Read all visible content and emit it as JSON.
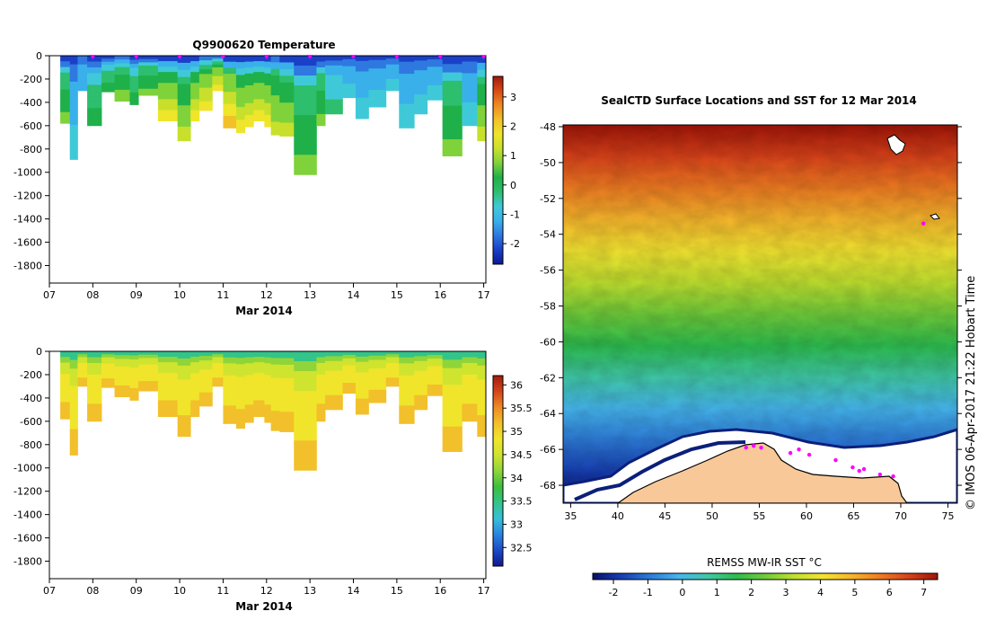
{
  "colors": {
    "background": "#ffffff",
    "land": "#f8c898",
    "profile_marker": "#ff00ff",
    "sea_ice": "#ffffff",
    "temp_ramp": [
      "#0d1790",
      "#1a40c8",
      "#2f78e0",
      "#3ab0ea",
      "#3fc9d8",
      "#2dbe6e",
      "#1fb04a",
      "#7fd23a",
      "#c8e02c",
      "#efe52a",
      "#f2c12a",
      "#ef8a22",
      "#d84a16",
      "#a11a0c"
    ],
    "sal_ramp": [
      "#13188e",
      "#1b4bc6",
      "#2b84e0",
      "#36bfd8",
      "#33c48a",
      "#3cbf3c",
      "#8fd53a",
      "#cfe42f",
      "#f0e52b",
      "#f2c02b",
      "#ee8a22",
      "#d3461a",
      "#a31a0f"
    ],
    "sst_ramp": [
      "#08116c",
      "#173fb4",
      "#2d7bd9",
      "#46b6ee",
      "#40c8a8",
      "#2dbd4e",
      "#6fcc3a",
      "#bfe02f",
      "#f3e531",
      "#f6b62c",
      "#ef7c22",
      "#d8421a",
      "#9f1407"
    ]
  },
  "chart_data": [
    {
      "id": "temperature-section",
      "type": "heatmap",
      "title": "Q9900620  Temperature",
      "xlabel": "Mar 2014",
      "ylabel": "",
      "x_ticks": [
        "07",
        "08",
        "09",
        "10",
        "11",
        "12",
        "13",
        "14",
        "15",
        "16",
        "17"
      ],
      "xlim": [
        7,
        17.05
      ],
      "y_ticks": [
        0,
        -200,
        -400,
        -600,
        -800,
        -1000,
        -1200,
        -1400,
        -1600,
        -1800
      ],
      "y_tick_labels": [
        "0",
        "-200",
        "-400",
        "-600",
        "-800",
        "-1000",
        "-1200",
        "-1400",
        "-1600",
        "-1800"
      ],
      "ylim": [
        -1950,
        0
      ],
      "colorbar_ticks": [
        3,
        2,
        1,
        0,
        -1,
        -2
      ],
      "colorbar_tick_labels": [
        "3",
        "2",
        "1",
        "0",
        "-1",
        "-2"
      ],
      "colorbar_range": [
        -2.7,
        3.7
      ],
      "marker_days": [
        8.0,
        9.0,
        10.0,
        11.0,
        12.0,
        13.0,
        14.0,
        15.0,
        16.0,
        17.0
      ],
      "profiles": [
        {
          "x0": 7.25,
          "x1": 7.47,
          "depth": 580
        },
        {
          "x0": 7.47,
          "x1": 7.65,
          "depth": 890
        },
        {
          "x0": 7.65,
          "x1": 7.87,
          "depth": 300
        },
        {
          "x0": 7.87,
          "x1": 8.2,
          "depth": 600
        },
        {
          "x0": 8.2,
          "x1": 8.5,
          "depth": 310
        },
        {
          "x0": 8.5,
          "x1": 8.85,
          "depth": 390
        },
        {
          "x0": 8.85,
          "x1": 9.05,
          "depth": 420
        },
        {
          "x0": 9.05,
          "x1": 9.5,
          "depth": 340
        },
        {
          "x0": 9.5,
          "x1": 9.95,
          "depth": 560
        },
        {
          "x0": 9.95,
          "x1": 10.25,
          "depth": 730
        },
        {
          "x0": 10.25,
          "x1": 10.45,
          "depth": 560
        },
        {
          "x0": 10.45,
          "x1": 10.75,
          "depth": 470
        },
        {
          "x0": 10.75,
          "x1": 11.0,
          "depth": 300
        },
        {
          "x0": 11.0,
          "x1": 11.3,
          "depth": 620
        },
        {
          "x0": 11.3,
          "x1": 11.5,
          "depth": 660
        },
        {
          "x0": 11.5,
          "x1": 11.7,
          "depth": 610
        },
        {
          "x0": 11.7,
          "x1": 11.95,
          "depth": 560
        },
        {
          "x0": 11.95,
          "x1": 12.1,
          "depth": 610
        },
        {
          "x0": 12.1,
          "x1": 12.3,
          "depth": 680
        },
        {
          "x0": 12.3,
          "x1": 12.63,
          "depth": 690
        },
        {
          "x0": 12.63,
          "x1": 13.15,
          "depth": 1020
        },
        {
          "x0": 13.15,
          "x1": 13.35,
          "depth": 600
        },
        {
          "x0": 13.35,
          "x1": 13.75,
          "depth": 500
        },
        {
          "x0": 13.75,
          "x1": 14.05,
          "depth": 360
        },
        {
          "x0": 14.05,
          "x1": 14.35,
          "depth": 540
        },
        {
          "x0": 14.35,
          "x1": 14.75,
          "depth": 440
        },
        {
          "x0": 14.75,
          "x1": 15.05,
          "depth": 300
        },
        {
          "x0": 15.05,
          "x1": 15.4,
          "depth": 620
        },
        {
          "x0": 15.4,
          "x1": 15.7,
          "depth": 500
        },
        {
          "x0": 15.7,
          "x1": 16.05,
          "depth": 380
        },
        {
          "x0": 16.05,
          "x1": 16.5,
          "depth": 860
        },
        {
          "x0": 16.5,
          "x1": 16.85,
          "depth": 600
        },
        {
          "x0": 16.85,
          "x1": 17.05,
          "depth": 730
        }
      ]
    },
    {
      "id": "salinity-section",
      "type": "heatmap",
      "title": "",
      "xlabel": "Mar 2014",
      "ylabel": "",
      "x_ticks": [
        "07",
        "08",
        "09",
        "10",
        "11",
        "12",
        "13",
        "14",
        "15",
        "16",
        "17"
      ],
      "xlim": [
        7,
        17.05
      ],
      "y_ticks": [
        0,
        -200,
        -400,
        -600,
        -800,
        -1000,
        -1200,
        -1400,
        -1600,
        -1800
      ],
      "y_tick_labels": [
        "0",
        "-200",
        "-400",
        "-600",
        "-800",
        "-1000",
        "-1200",
        "-1400",
        "-1600",
        "-1800"
      ],
      "ylim": [
        -1950,
        0
      ],
      "colorbar_ticks": [
        36,
        35.5,
        35,
        34.5,
        34,
        33.5,
        33,
        32.5
      ],
      "colorbar_tick_labels": [
        "36",
        "35.5",
        "35",
        "34.5",
        "34",
        "33.5",
        "33",
        "32.5"
      ],
      "colorbar_range": [
        32.1,
        36.2
      ]
    },
    {
      "id": "sst-map",
      "type": "heatmap",
      "title": "SealCTD Surface Locations and SST for 12 Mar 2014",
      "xlabel": "",
      "ylabel": "",
      "x_ticks": [
        35,
        40,
        45,
        50,
        55,
        60,
        65,
        70,
        75
      ],
      "y_ticks": [
        -48,
        -50,
        -52,
        -54,
        -56,
        -58,
        -60,
        -62,
        -64,
        -66,
        -68
      ],
      "y_tick_labels": [
        "-48",
        "-50",
        "-52",
        "-54",
        "-56",
        "-58",
        "-60",
        "-62",
        "-64",
        "-66",
        "-68"
      ],
      "xlim": [
        34.2,
        76.0
      ],
      "ylim": [
        -69.0,
        -47.9
      ],
      "colorbar_label": "REMSS MW-IR SST °C",
      "colorbar_ticks": [
        -2,
        -1,
        0,
        1,
        2,
        3,
        4,
        5,
        6,
        7
      ],
      "colorbar_tick_labels": [
        "-2",
        "-1",
        "0",
        "1",
        "2",
        "3",
        "4",
        "5",
        "6",
        "7"
      ],
      "colorbar_range": [
        -2.6,
        7.4
      ],
      "seal_locations": [
        {
          "lon": 53.6,
          "lat": -65.9
        },
        {
          "lon": 54.4,
          "lat": -65.8
        },
        {
          "lon": 55.2,
          "lat": -65.9
        },
        {
          "lon": 58.3,
          "lat": -66.2
        },
        {
          "lon": 59.2,
          "lat": -66.0
        },
        {
          "lon": 60.3,
          "lat": -66.3
        },
        {
          "lon": 63.1,
          "lat": -66.6
        },
        {
          "lon": 64.9,
          "lat": -67.0
        },
        {
          "lon": 65.6,
          "lat": -67.2
        },
        {
          "lon": 66.1,
          "lat": -67.1
        },
        {
          "lon": 67.8,
          "lat": -67.4
        },
        {
          "lon": 69.2,
          "lat": -67.5
        },
        {
          "lon": 72.4,
          "lat": -53.4
        }
      ]
    }
  ],
  "credit": "© IMOS 06-Apr-2017 21:22 Hobart Time"
}
